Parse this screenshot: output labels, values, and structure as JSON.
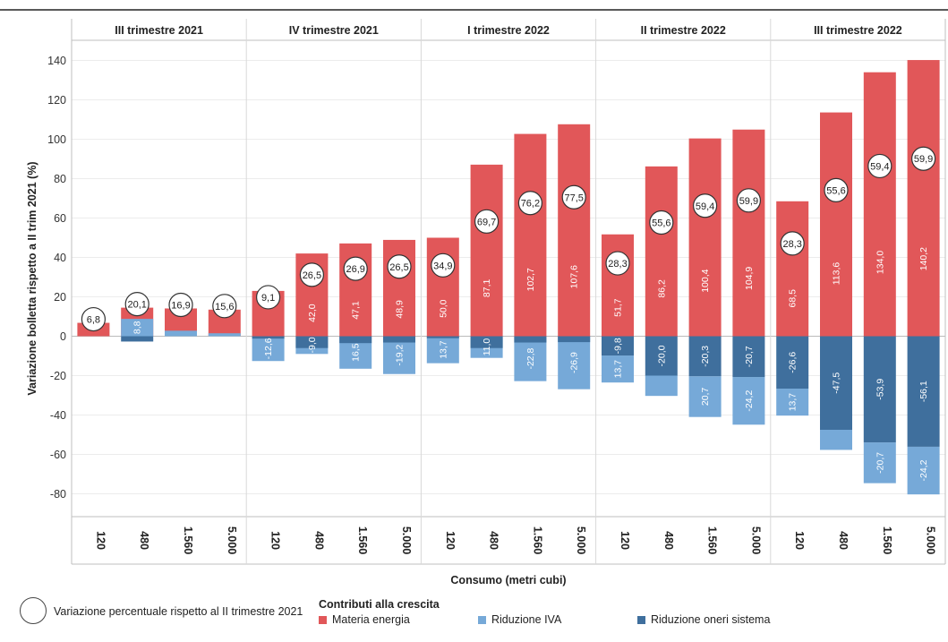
{
  "chart_data": {
    "type": "bar",
    "stacked": true,
    "ylabel": "Variazione bolletta rispetto a II trim 2021 (%)",
    "xlabel": "Consumo (metri cubi)",
    "ylim": [
      -90,
      150
    ],
    "yticks": [
      140,
      120,
      100,
      80,
      60,
      40,
      20,
      0,
      -20,
      -40,
      -60,
      -80
    ],
    "grid": true,
    "legend_placement": "bottom",
    "panels": [
      {
        "name": "III trimestre 2021",
        "categories": [
          "120",
          "480",
          "1.560",
          "5.000"
        ],
        "materia": [
          6.8,
          14.5,
          14.1,
          13.5
        ],
        "materia_labels": [
          "",
          "",
          "",
          ""
        ],
        "iva": [
          0,
          8.8,
          2.8,
          1.5
        ],
        "iva_labels": [
          "",
          "8,8",
          "",
          ""
        ],
        "oneri": [
          0,
          -2.7,
          0,
          0
        ],
        "oneri_labels": [
          "",
          "",
          "",
          ""
        ],
        "circle": [
          "6,8",
          "20,1",
          "16,9",
          "15,6"
        ]
      },
      {
        "name": "IV trimestre 2021",
        "categories": [
          "120",
          "480",
          "1.560",
          "5.000"
        ],
        "materia": [
          23,
          42.0,
          47.1,
          48.9
        ],
        "materia_labels": [
          "",
          "42,0",
          "47,1",
          "48,9"
        ],
        "iva": [
          -12.6,
          -9.0,
          -16.5,
          -19.2
        ],
        "iva_labels": [
          "-12,6",
          "-9,0",
          "16,5",
          "-19,2"
        ],
        "oneri": [
          -1.2,
          -6.0,
          -3.5,
          -3.2
        ],
        "oneri_labels": [
          "",
          "",
          "",
          ""
        ],
        "circle": [
          "9,1",
          "26,5",
          "26,9",
          "26,5"
        ]
      },
      {
        "name": "I trimestre 2022",
        "categories": [
          "120",
          "480",
          "1.560",
          "5.000"
        ],
        "materia": [
          50.0,
          87.1,
          102.7,
          107.6
        ],
        "materia_labels": [
          "50,0",
          "87,1",
          "102,7",
          "107,6"
        ],
        "iva": [
          -13.7,
          -11.0,
          -22.8,
          -26.9
        ],
        "iva_labels": [
          "13,7",
          "11,0",
          "-22,8",
          "-26,9"
        ],
        "oneri": [
          -1.0,
          -6.0,
          -3.2,
          -3.0
        ],
        "oneri_labels": [
          "",
          "",
          "",
          ""
        ],
        "circle": [
          "34,9",
          "69,7",
          "76,2",
          "77,5"
        ]
      },
      {
        "name": "II trimestre 2022",
        "categories": [
          "120",
          "480",
          "1.560",
          "5.000"
        ],
        "materia": [
          51.7,
          86.2,
          100.4,
          104.9
        ],
        "materia_labels": [
          "51,7",
          "86,2",
          "100,4",
          "104,9"
        ],
        "iva": [
          -13.7,
          -10.3,
          -20.7,
          -24.2
        ],
        "iva_labels": [
          "13,7",
          "",
          "20,7",
          "-24,2"
        ],
        "oneri": [
          -9.8,
          -20.0,
          -20.3,
          -20.7
        ],
        "oneri_labels": [
          "-9,8",
          "-20,0",
          "-20,3",
          "-20,7"
        ],
        "circle": [
          "28,3",
          "55,6",
          "59,4",
          "59,9"
        ]
      },
      {
        "name": "III trimestre 2022",
        "categories": [
          "120",
          "480",
          "1.560",
          "5.000"
        ],
        "materia": [
          68.5,
          113.6,
          134.0,
          140.2
        ],
        "materia_labels": [
          "68,5",
          "113,6",
          "134,0",
          "140,2"
        ],
        "iva": [
          -13.7,
          -10.2,
          -20.7,
          -24.2
        ],
        "iva_labels": [
          "13,7",
          "",
          "-20,7",
          "-24,2"
        ],
        "oneri": [
          -26.6,
          -47.5,
          -53.9,
          -56.1
        ],
        "oneri_labels": [
          "-26,6",
          "-47,5",
          "-53,9",
          "-56,1"
        ],
        "circle": [
          "28,3",
          "55,6",
          "59,4",
          "59,9"
        ]
      }
    ],
    "colors": {
      "materia": "#e15759",
      "iva": "#76a9d8",
      "oneri": "#3f6f9d"
    }
  },
  "legend": {
    "circle_label": "Variazione percentuale rispetto al II trimestre 2021",
    "title": "Contributi alla crescita",
    "items": [
      {
        "label": "Materia energia",
        "color": "#e15759"
      },
      {
        "label": "Riduzione IVA",
        "color": "#76a9d8"
      },
      {
        "label": "Riduzione oneri sistema",
        "color": "#3f6f9d"
      }
    ]
  }
}
